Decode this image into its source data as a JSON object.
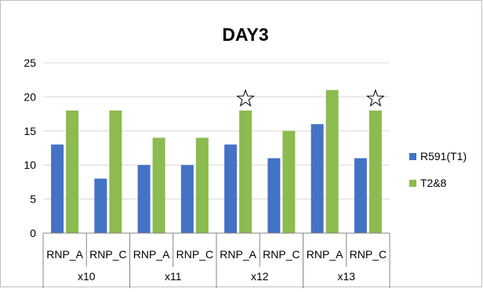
{
  "chart_data": {
    "type": "bar",
    "title": "DAY3",
    "xlabel": "",
    "ylabel": "",
    "ylim": [
      0,
      25
    ],
    "yticks": [
      0,
      5,
      10,
      15,
      20,
      25
    ],
    "grid": true,
    "legend_position": "right",
    "groups": [
      {
        "label": "x10",
        "categories": [
          "RNP_A",
          "RNP_C"
        ]
      },
      {
        "label": "x11",
        "categories": [
          "RNP_A",
          "RNP_C"
        ]
      },
      {
        "label": "x12",
        "categories": [
          "RNP_A",
          "RNP_C"
        ]
      },
      {
        "label": "x13",
        "categories": [
          "RNP_A",
          "RNP_C"
        ]
      }
    ],
    "series": [
      {
        "name": "R591(T1)",
        "color": "#4472C4",
        "values": [
          13,
          8,
          10,
          10,
          13,
          11,
          16,
          11
        ]
      },
      {
        "name": "T2&8",
        "color": "#8CBB4F",
        "values": [
          18,
          18,
          14,
          14,
          18,
          15,
          21,
          18
        ]
      }
    ],
    "annotations": [
      {
        "type": "star-icon",
        "category_index": 4,
        "series": "T2&8"
      },
      {
        "type": "star-icon",
        "category_index": 7,
        "series": "T2&8"
      }
    ]
  }
}
